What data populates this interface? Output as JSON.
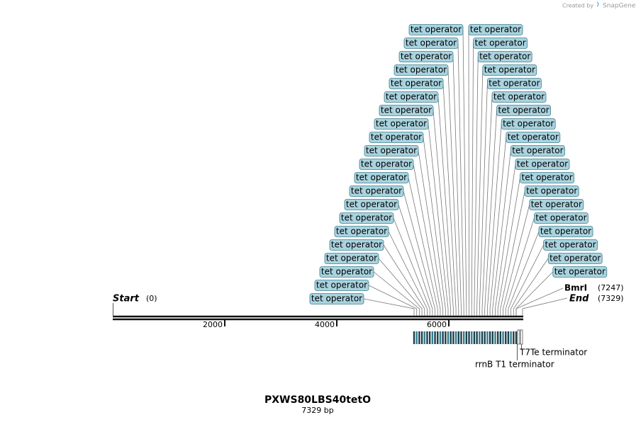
{
  "watermark": {
    "prefix": "Created by",
    "brand": "SnapGene"
  },
  "map": {
    "start": {
      "label": "Start",
      "position": "(0)"
    },
    "end": {
      "label": "End",
      "position": "(7329)"
    },
    "sites": [
      {
        "label": "BmrI",
        "position": "(7247)"
      }
    ],
    "ruler_ticks": [
      2000,
      4000,
      6000
    ],
    "features": [
      {
        "label": "tet operator"
      },
      {
        "label": "tet operator"
      },
      {
        "label": "tet operator"
      },
      {
        "label": "tet operator"
      },
      {
        "label": "tet operator"
      },
      {
        "label": "tet operator"
      },
      {
        "label": "tet operator"
      },
      {
        "label": "tet operator"
      },
      {
        "label": "tet operator"
      },
      {
        "label": "tet operator"
      },
      {
        "label": "tet operator"
      },
      {
        "label": "tet operator"
      },
      {
        "label": "tet operator"
      },
      {
        "label": "tet operator"
      },
      {
        "label": "tet operator"
      },
      {
        "label": "tet operator"
      },
      {
        "label": "tet operator"
      },
      {
        "label": "tet operator"
      },
      {
        "label": "tet operator"
      },
      {
        "label": "tet operator"
      },
      {
        "label": "tet operator"
      },
      {
        "label": "tet operator"
      },
      {
        "label": "tet operator"
      },
      {
        "label": "tet operator"
      },
      {
        "label": "tet operator"
      },
      {
        "label": "tet operator"
      },
      {
        "label": "tet operator"
      },
      {
        "label": "tet operator"
      },
      {
        "label": "tet operator"
      },
      {
        "label": "tet operator"
      },
      {
        "label": "tet operator"
      },
      {
        "label": "tet operator"
      },
      {
        "label": "tet operator"
      },
      {
        "label": "tet operator"
      },
      {
        "label": "tet operator"
      },
      {
        "label": "tet operator"
      },
      {
        "label": "tet operator"
      },
      {
        "label": "tet operator"
      },
      {
        "label": "tet operator"
      },
      {
        "label": "tet operator"
      }
    ],
    "terminators": [
      {
        "label": "T7Te terminator"
      },
      {
        "label": "rrnB T1 terminator"
      }
    ]
  },
  "title": "PXWS80LBS40tetO",
  "subtitle": "7329 bp"
}
